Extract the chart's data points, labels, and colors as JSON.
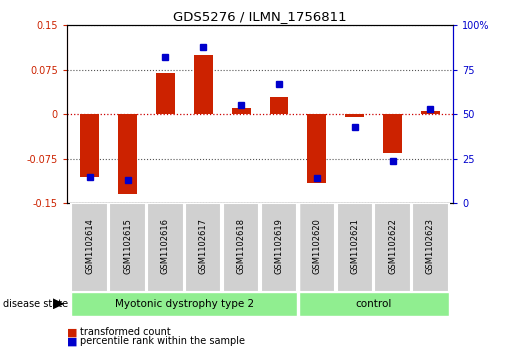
{
  "title": "GDS5276 / ILMN_1756811",
  "samples": [
    "GSM1102614",
    "GSM1102615",
    "GSM1102616",
    "GSM1102617",
    "GSM1102618",
    "GSM1102619",
    "GSM1102620",
    "GSM1102621",
    "GSM1102622",
    "GSM1102623"
  ],
  "red_values": [
    -0.105,
    -0.135,
    0.07,
    0.1,
    0.01,
    0.03,
    -0.115,
    -0.005,
    -0.065,
    0.005
  ],
  "blue_values_pct": [
    15,
    13,
    82,
    88,
    55,
    67,
    14,
    43,
    24,
    53
  ],
  "ylim_left": [
    -0.15,
    0.15
  ],
  "ylim_right": [
    0,
    100
  ],
  "yticks_left": [
    -0.15,
    -0.075,
    0,
    0.075,
    0.15
  ],
  "yticks_right": [
    0,
    25,
    50,
    75,
    100
  ],
  "ytick_labels_left": [
    "-0.15",
    "-0.075",
    "0",
    "0.075",
    "0.15"
  ],
  "ytick_labels_right": [
    "0",
    "25",
    "50",
    "75",
    "100%"
  ],
  "red_color": "#CC2200",
  "blue_color": "#0000CC",
  "dotted_color": "#555555",
  "red_dotted_color": "#CC0000",
  "bar_width": 0.5,
  "marker_size": 5,
  "bg_label": "#D0D0D0",
  "green_color": "#90EE90",
  "legend_red": "transformed count",
  "legend_blue": "percentile rank within the sample",
  "disease_state_label": "disease state",
  "group1_label": "Myotonic dystrophy type 2",
  "group2_label": "control",
  "n_group1": 6,
  "n_group2": 4
}
